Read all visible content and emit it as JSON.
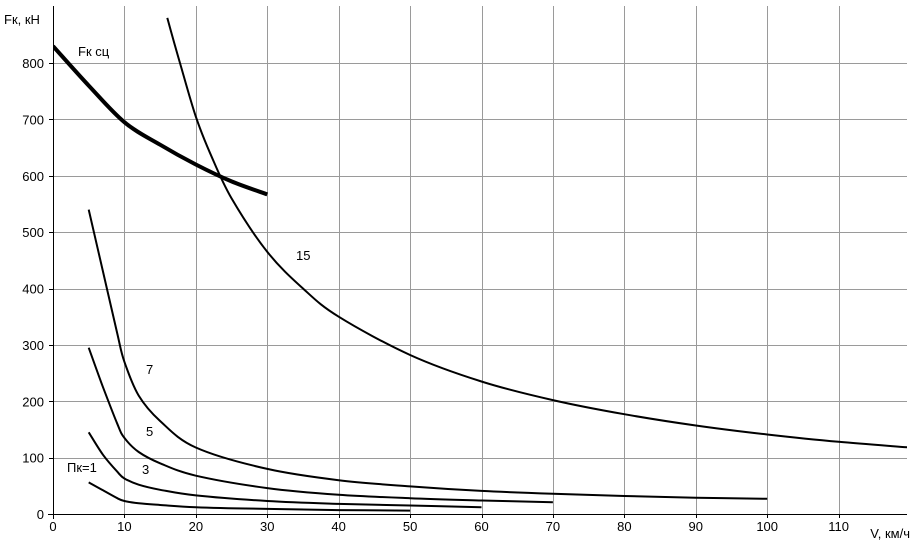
{
  "chart_data": {
    "type": "line",
    "ylabel": "Fк, кН",
    "xlabel": "V, км/ч",
    "xlim": [
      0,
      120
    ],
    "ylim": [
      0,
      850
    ],
    "x_ticks": [
      0,
      10,
      20,
      30,
      40,
      50,
      60,
      70,
      80,
      90,
      100,
      110
    ],
    "y_ticks": [
      0,
      100,
      200,
      300,
      400,
      500,
      600,
      700,
      800
    ],
    "grid": true,
    "series": [
      {
        "name": "Fк сц",
        "emphasis": "bold",
        "x": [
          0,
          5,
          10,
          15,
          20,
          25,
          30
        ],
        "y": [
          830,
          760,
          695,
          655,
          620,
          590,
          567
        ]
      },
      {
        "name": "15",
        "x": [
          16,
          18,
          20,
          22,
          25,
          30,
          35,
          40,
          50,
          60,
          70,
          80,
          90,
          100,
          110,
          120
        ],
        "y": [
          880,
          790,
          705,
          640,
          560,
          465,
          400,
          350,
          282,
          235,
          202,
          177,
          157,
          141,
          128,
          118
        ]
      },
      {
        "name": "7",
        "x": [
          5,
          7,
          9,
          10,
          12,
          15,
          20,
          30,
          40,
          50,
          60,
          70,
          80,
          90,
          100
        ],
        "y": [
          540,
          430,
          320,
          270,
          210,
          165,
          118,
          80,
          60,
          49,
          41,
          36,
          32,
          29,
          27
        ]
      },
      {
        "name": "5",
        "x": [
          5,
          7,
          9,
          10,
          12,
          15,
          20,
          30,
          40,
          50,
          60,
          70
        ],
        "y": [
          295,
          225,
          160,
          135,
          110,
          90,
          68,
          46,
          34,
          28,
          24,
          21
        ]
      },
      {
        "name": "3",
        "x": [
          5,
          7,
          9,
          10,
          12,
          15,
          20,
          30,
          40,
          50,
          60
        ],
        "y": [
          145,
          105,
          75,
          63,
          52,
          43,
          33,
          23,
          18,
          15,
          12
        ]
      },
      {
        "name": "Пк=1",
        "x": [
          5,
          7,
          9,
          10,
          12,
          15,
          20,
          30,
          40,
          50
        ],
        "y": [
          56,
          42,
          28,
          23,
          19,
          16,
          12,
          9,
          7,
          6
        ]
      }
    ]
  }
}
